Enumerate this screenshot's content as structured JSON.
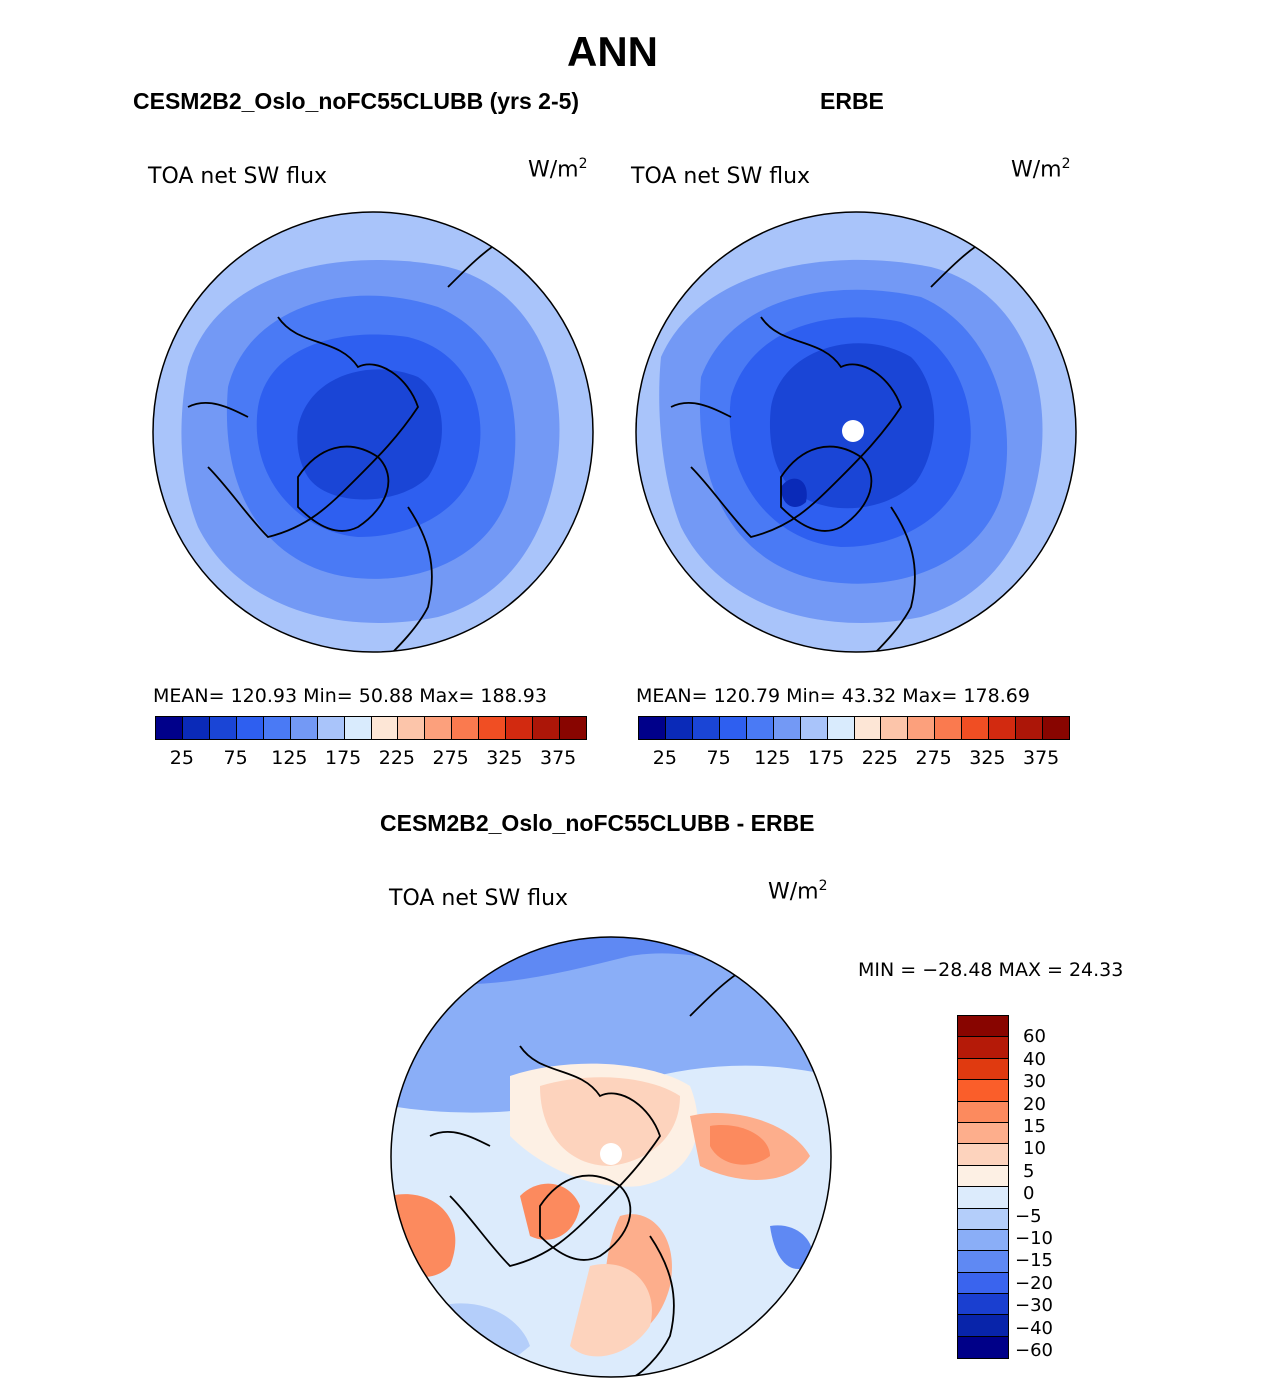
{
  "figure": {
    "title": "ANN",
    "panels": [
      {
        "name": "model",
        "title": "CESM2B2_Oslo_noFC55CLUBB (yrs 2-5)",
        "variable": "TOA net SW flux",
        "units_base": "W/m",
        "units_exp": "2",
        "stats": "MEAN= 120.93   Min=   50.88   Max= 188.93"
      },
      {
        "name": "obs",
        "title": "ERBE",
        "variable": "TOA net SW flux",
        "units_base": "W/m",
        "units_exp": "2",
        "stats": "MEAN= 120.79   Min=   43.32   Max= 178.69"
      },
      {
        "name": "diff",
        "title": "CESM2B2_Oslo_noFC55CLUBB - ERBE",
        "variable": "TOA net SW flux",
        "units_base": "W/m",
        "units_exp": "2",
        "stats": "MIN = −28.48 MAX =   24.33"
      }
    ],
    "abs_colorbar": {
      "labels": [
        "25",
        "75",
        "125",
        "175",
        "225",
        "275",
        "325",
        "375"
      ],
      "colors": [
        "#00008a",
        "#0a2ab8",
        "#1a45d6",
        "#2e5ff0",
        "#4a7af5",
        "#7399f5",
        "#a9c4fa",
        "#d9ebfd",
        "#fde6d6",
        "#fcc5aa",
        "#fca07c",
        "#fa7a4f",
        "#f04e23",
        "#d22a10",
        "#ac1608",
        "#880500"
      ]
    },
    "diff_colorbar": {
      "labels": [
        "60",
        "40",
        "30",
        "20",
        "15",
        "10",
        "5",
        "0",
        "−5",
        "−10",
        "−15",
        "−20",
        "−30",
        "−40",
        "−60"
      ],
      "colors": [
        "#880500",
        "#b51a08",
        "#e03a10",
        "#fa5e2a",
        "#fc8a5e",
        "#fdae8c",
        "#fdd3bd",
        "#fdf0e4",
        "#dcebfc",
        "#b4cefa",
        "#8aaef7",
        "#5f89f3",
        "#3a64ee",
        "#1a3fd0",
        "#0824aa",
        "#000088"
      ]
    }
  }
}
